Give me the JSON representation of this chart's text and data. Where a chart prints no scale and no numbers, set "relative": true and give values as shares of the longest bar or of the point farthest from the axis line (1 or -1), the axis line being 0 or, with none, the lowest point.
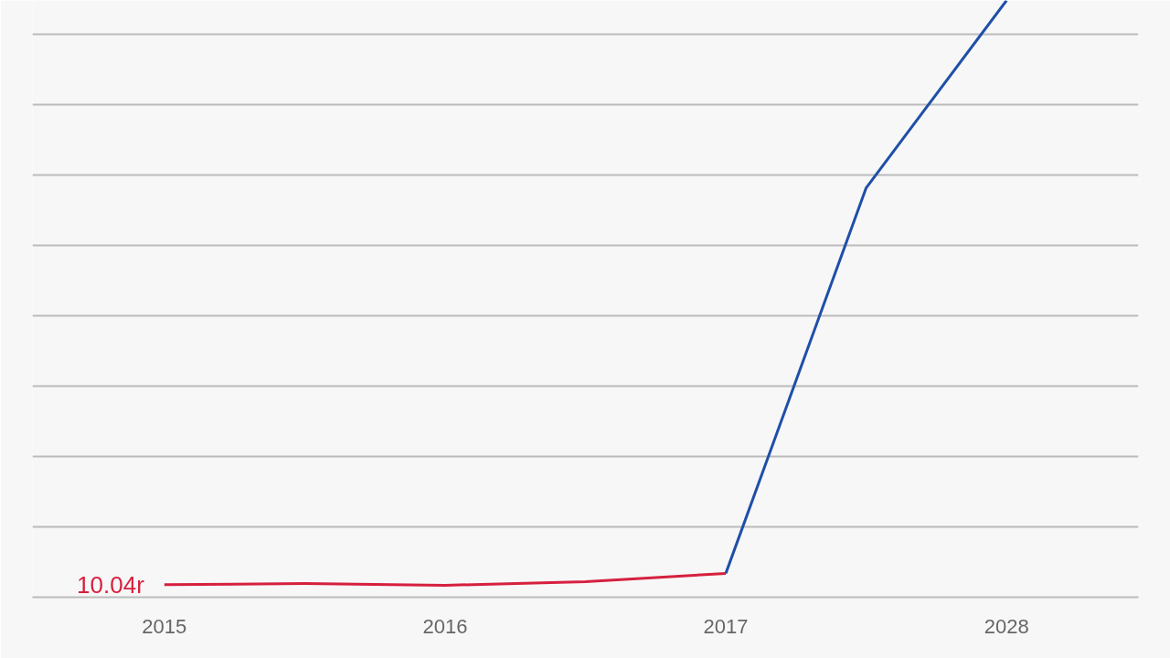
{
  "chart_data": {
    "type": "line",
    "relative": true,
    "categories": [
      "2015",
      null,
      "2016",
      null,
      "2017",
      null,
      "2028"
    ],
    "series": [
      {
        "color": "#d6203e",
        "values": [
          0.021,
          0.023,
          0.02,
          0.026,
          0.04,
          null,
          null
        ]
      },
      {
        "color": "#1f4fa8",
        "values": [
          null,
          null,
          null,
          null,
          0.04,
          0.686,
          1.0
        ]
      }
    ],
    "annotations": [
      {
        "text": "10.04r",
        "x": "2015",
        "y": 0.021
      }
    ],
    "grid": "y",
    "marker": "none",
    "line_style": "solid"
  }
}
